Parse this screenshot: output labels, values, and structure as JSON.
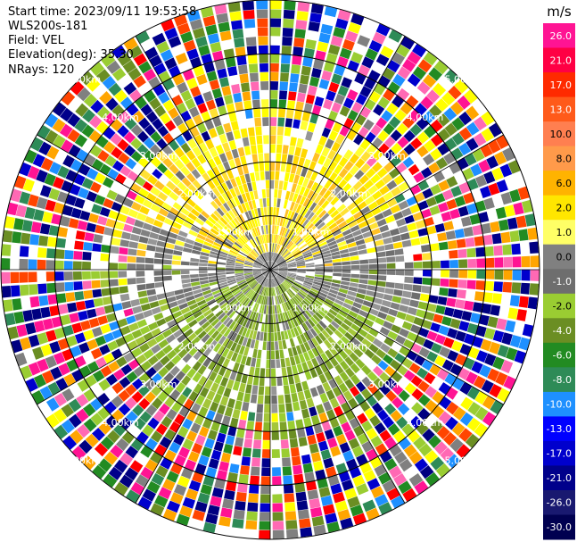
{
  "header": {
    "start_time": "Start time: 2023/09/11 19:53:58",
    "instrument": "WLS200s-181",
    "field": "Field: VEL",
    "elevation": "Elevation(deg): 35.30",
    "nrays": "NRays: 120"
  },
  "chart_data": {
    "type": "heatmap",
    "projection": "polar-ppi",
    "title": "",
    "field": "VEL",
    "unit": "m/s",
    "n_rays": 120,
    "elevation_deg": 35.3,
    "range_rings_km": [
      1.0,
      2.0,
      3.0,
      4.0,
      5.0
    ],
    "range_ring_labels": [
      "1.00km",
      "2.00km",
      "3.00km",
      "4.00km",
      "5.00km"
    ],
    "max_range_km": 5.0,
    "spokes_deg": [
      0,
      30,
      60,
      90,
      120,
      150,
      180,
      210,
      240,
      270,
      300,
      330
    ],
    "colorbar": {
      "unit_label": "m/s",
      "ticks": [
        "26.0",
        "21.0",
        "17.0",
        "13.0",
        "10.0",
        "8.0",
        "6.0",
        "2.0",
        "1.0",
        "0.0",
        "-1.0",
        "-2.0",
        "-4.0",
        "-6.0",
        "-8.0",
        "-10.0",
        "-13.0",
        "-17.0",
        "-21.0",
        "-26.0",
        "-30.0"
      ],
      "colors": [
        "#ff1493",
        "#ff0044",
        "#ff2a00",
        "#ff5a1a",
        "#ff7f50",
        "#ff9a4a",
        "#ffb300",
        "#ffe600",
        "#ffff66",
        "#808080",
        "#6e6e6e",
        "#9acd32",
        "#6b8e23",
        "#228b22",
        "#2e8b57",
        "#1e90ff",
        "#0000ff",
        "#0000cd",
        "#00008b",
        "#191970",
        "#000050"
      ]
    },
    "noise_palette": [
      "#ff1493",
      "#ff0000",
      "#ff69b4",
      "#ffff00",
      "#ffa500",
      "#0000cd",
      "#00008b",
      "#228b22",
      "#6b8e23",
      "#9acd32",
      "#808080",
      "#ffffff",
      "#1e90ff",
      "#ff4500",
      "#000080",
      "#2e8b57"
    ],
    "regions": [
      {
        "sector": "north (az 300–60)",
        "range_km": [
          0.4,
          3.1
        ],
        "value_class": "1.0 to 2.0 m/s (yellow)"
      },
      {
        "sector": "south (az 120–250)",
        "range_km": [
          0.2,
          3.0
        ],
        "value_class": "-1.0 to -2.0 m/s (olive/green)"
      },
      {
        "sector": "east and west near 90/270",
        "range_km": [
          0.0,
          2.8
        ],
        "value_class": "0.0 m/s (gray)"
      },
      {
        "sector": "all",
        "range_km": [
          3.1,
          5.0
        ],
        "value_class": "noise (random)"
      }
    ]
  }
}
